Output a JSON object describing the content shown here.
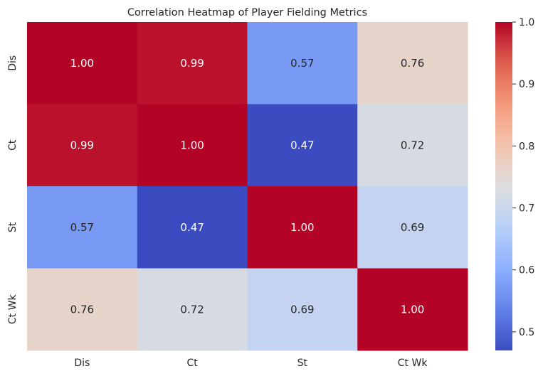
{
  "chart_data": {
    "type": "heatmap",
    "title": "Correlation Heatmap of Player Fielding Metrics",
    "xlabel": "",
    "ylabel": "",
    "x_categories": [
      "Dis",
      "Ct",
      "St",
      "Ct Wk"
    ],
    "y_categories": [
      "Dis",
      "Ct",
      "St",
      "Ct Wk"
    ],
    "values": [
      [
        1.0,
        0.99,
        0.57,
        0.76
      ],
      [
        0.99,
        1.0,
        0.47,
        0.72
      ],
      [
        0.57,
        0.47,
        1.0,
        0.69
      ],
      [
        0.76,
        0.72,
        0.69,
        1.0
      ]
    ],
    "value_labels": [
      [
        "1.00",
        "0.99",
        "0.57",
        "0.76"
      ],
      [
        "0.99",
        "1.00",
        "0.47",
        "0.72"
      ],
      [
        "0.57",
        "0.47",
        "1.00",
        "0.69"
      ],
      [
        "0.76",
        "0.72",
        "0.69",
        "1.00"
      ]
    ],
    "colormap": "coolwarm",
    "vmin": 0.47,
    "vmax": 1.0,
    "colorbar": {
      "ticks": [
        0.5,
        0.6,
        0.7,
        0.8,
        0.9,
        1.0
      ],
      "tick_labels": [
        "0.5",
        "0.6",
        "0.7",
        "0.8",
        "0.9",
        "1.0"
      ]
    },
    "grid": false,
    "legend": "colorbar-right"
  }
}
